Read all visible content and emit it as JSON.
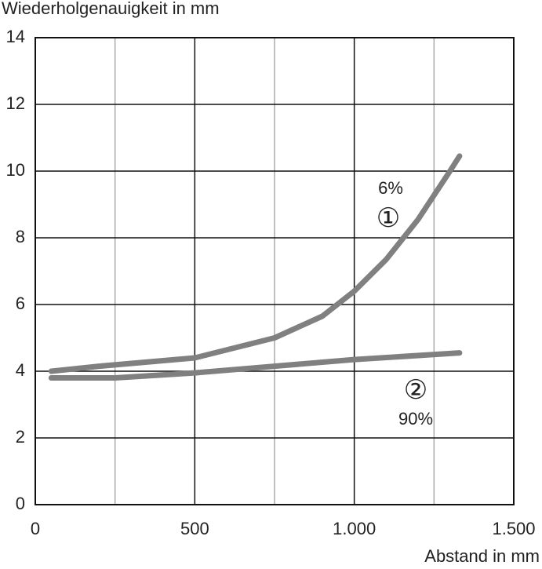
{
  "chart_data": {
    "type": "line",
    "ylabel": "Wiederholgenauigkeit in mm",
    "xlabel": "Abstand in mm",
    "xlim": [
      0,
      1500
    ],
    "ylim": [
      0,
      14
    ],
    "xticks": [
      0,
      500,
      {
        "value": 1000,
        "label": "1.000"
      },
      {
        "value": 1500,
        "label": "1.500"
      }
    ],
    "xminor_ticks": [
      250,
      750,
      1250
    ],
    "yticks": [
      0,
      2,
      4,
      6,
      8,
      10,
      12,
      14
    ],
    "grid": true,
    "series": [
      {
        "name": "6%",
        "marker": "①",
        "color": "#808080",
        "x": [
          50,
          200,
          500,
          750,
          900,
          1000,
          1100,
          1200,
          1300,
          1330
        ],
        "values": [
          4.0,
          4.15,
          4.4,
          5.0,
          5.65,
          6.4,
          7.35,
          8.55,
          10.0,
          10.45
        ]
      },
      {
        "name": "90%",
        "marker": "②",
        "color": "#808080",
        "x": [
          50,
          250,
          500,
          750,
          1000,
          1330
        ],
        "values": [
          3.8,
          3.8,
          3.95,
          4.15,
          4.35,
          4.55
        ]
      }
    ]
  }
}
